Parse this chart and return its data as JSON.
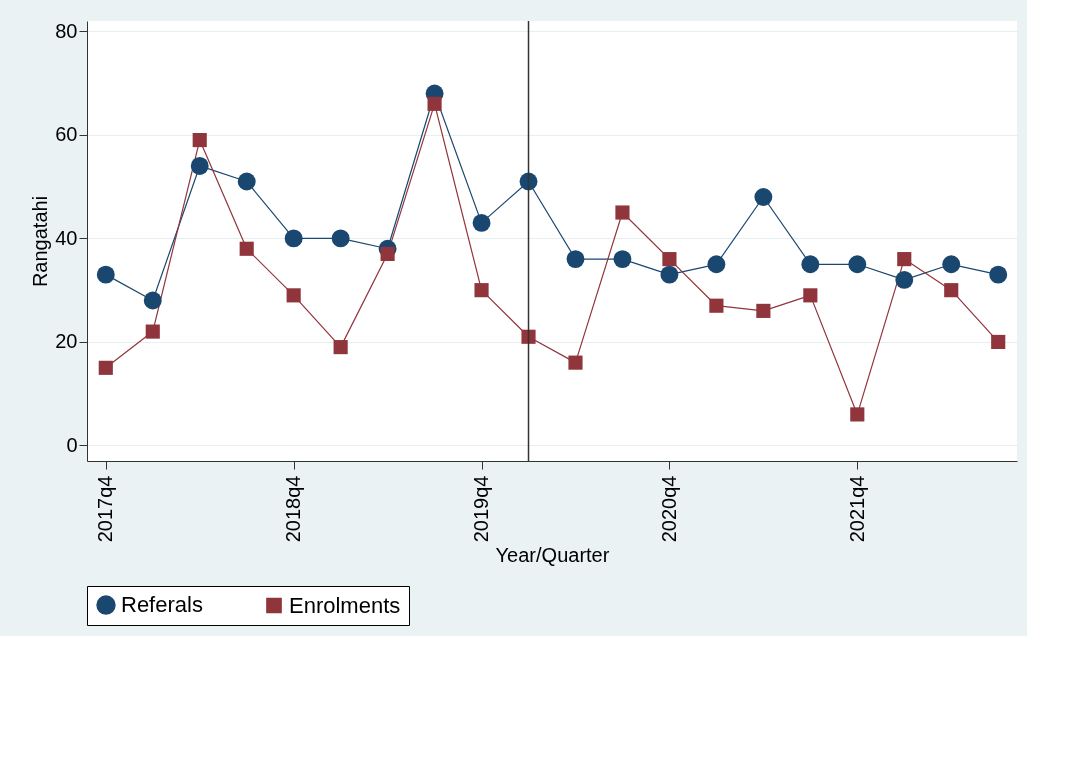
{
  "chart_data": {
    "type": "line",
    "xlabel": "Year/Quarter",
    "ylabel": "Rangatahi",
    "categories": [
      "2017q4",
      null,
      null,
      null,
      "2018q4",
      null,
      null,
      null,
      "2019q4",
      null,
      null,
      null,
      "2020q4",
      null,
      null,
      null,
      "2021q4",
      null,
      null,
      null
    ],
    "series": [
      {
        "name": "Referals",
        "color": "#1a476f",
        "marker": "circle",
        "values": [
          33,
          28,
          54,
          51,
          40,
          40,
          38,
          68,
          43,
          51,
          36,
          36,
          33,
          35,
          48,
          35,
          35,
          32,
          35,
          33
        ]
      },
      {
        "name": "Enrolments",
        "color": "#90353b",
        "marker": "square",
        "values": [
          15,
          22,
          59,
          38,
          29,
          19,
          37,
          66,
          30,
          21,
          16,
          45,
          36,
          27,
          26,
          29,
          6,
          36,
          30,
          20
        ]
      }
    ],
    "ylim": [
      -3,
      82
    ],
    "yticks": [
      0,
      20,
      40,
      60,
      80
    ],
    "grid": "y",
    "legend": "bottom",
    "line_style": "solid"
  }
}
